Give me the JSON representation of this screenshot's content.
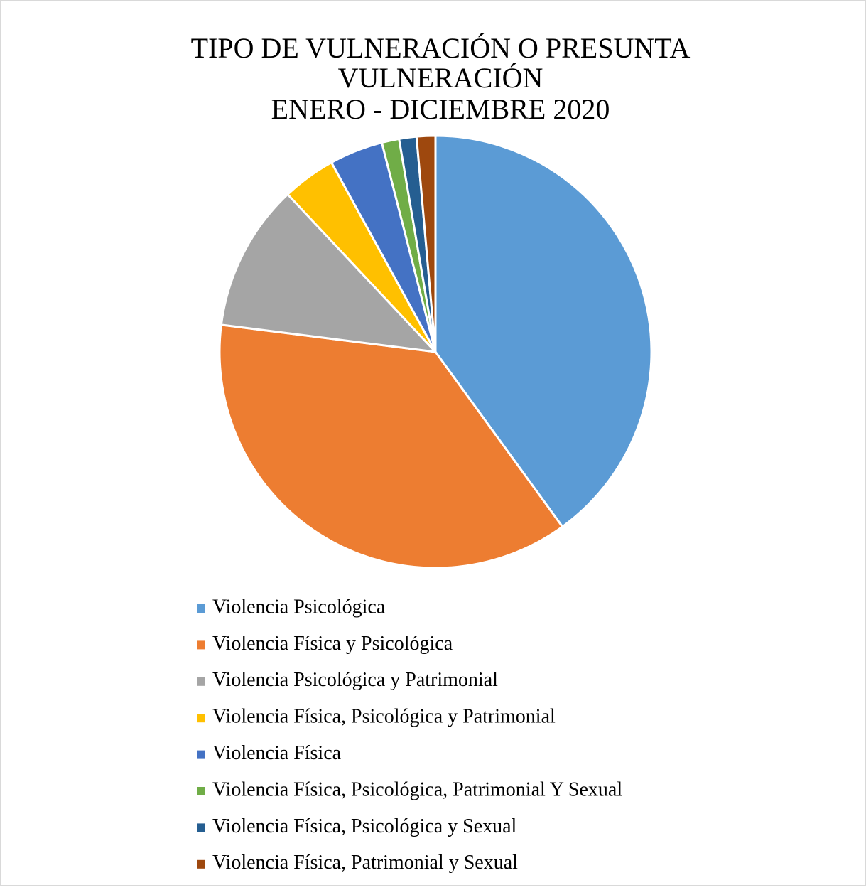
{
  "chart_data": {
    "type": "pie",
    "title": [
      "TIPO DE VULNERACIÓN O PRESUNTA",
      "VULNERACIÓN",
      "ENERO - DICIEMBRE 2020"
    ],
    "categories": [
      "Violencia Psicológica",
      "Violencia Física y Psicológica",
      "Violencia Psicológica y Patrimonial",
      "Violencia Física, Psicológica y Patrimonial",
      "Violencia Física",
      "Violencia Física, Psicológica, Patrimonial Y Sexual",
      "Violencia Física, Psicológica y Sexual",
      "Violencia Física, Patrimonial y Sexual"
    ],
    "values": [
      40,
      37,
      11,
      4,
      4,
      1.3,
      1.3,
      1.4
    ],
    "colors": [
      "#5B9BD5",
      "#ED7D31",
      "#A5A5A5",
      "#FFC000",
      "#4472C4",
      "#70AD47",
      "#255E91",
      "#9E480E"
    ],
    "legend": "bottom"
  }
}
